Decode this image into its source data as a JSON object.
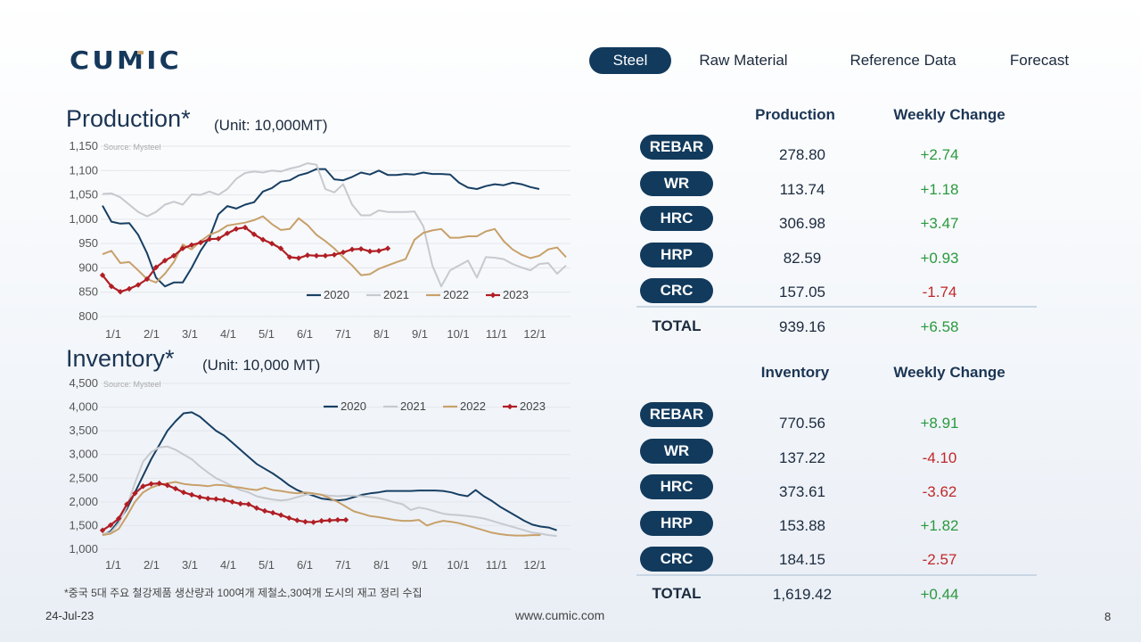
{
  "logo_text": "CUMIC",
  "nav": {
    "items": [
      "Steel",
      "Raw Material",
      "Reference Data",
      "Forecast"
    ],
    "active": "Steel"
  },
  "production_chart": {
    "title": "Production*",
    "unit": "(Unit: 10,000MT)"
  },
  "inventory_chart": {
    "title": "Inventory*",
    "unit": "(Unit: 10,000 MT)"
  },
  "chart_data": [
    {
      "type": "line",
      "title": "Production*",
      "subtitle": "(Unit: 10,000MT)",
      "source": "Source: Mysteel",
      "ylim": [
        800,
        1150
      ],
      "yticks": [
        800,
        850,
        900,
        950,
        "1,000",
        "1,050",
        "1,100",
        "1,150"
      ],
      "x_tick_labels": [
        "1/1",
        "2/1",
        "3/1",
        "4/1",
        "5/1",
        "6/1",
        "7/1",
        "8/1",
        "9/1",
        "10/1",
        "11/1",
        "12/1"
      ],
      "legend_position": "bottom-right",
      "grid": true,
      "series": [
        {
          "name": "2020",
          "color": "#173f63",
          "marker": false,
          "values": [
            1028,
            995,
            991,
            992,
            968,
            930,
            880,
            862,
            870,
            870,
            900,
            935,
            962,
            1010,
            1027,
            1022,
            1030,
            1035,
            1057,
            1064,
            1077,
            1080,
            1090,
            1095,
            1103,
            1103,
            1082,
            1080,
            1087,
            1096,
            1092,
            1100,
            1091,
            1091,
            1093,
            1092,
            1096,
            1093,
            1093,
            1092,
            1075,
            1065,
            1062,
            1068,
            1072,
            1070,
            1075,
            1072,
            1066,
            1062
          ]
        },
        {
          "name": "2021",
          "color": "#c6c9cd",
          "marker": false,
          "values": [
            1052,
            1053,
            1045,
            1030,
            1015,
            1006,
            1015,
            1030,
            1036,
            1030,
            1051,
            1050,
            1057,
            1050,
            1062,
            1083,
            1095,
            1098,
            1096,
            1100,
            1098,
            1104,
            1108,
            1115,
            1112,
            1062,
            1055,
            1072,
            1030,
            1008,
            1008,
            1018,
            1015,
            1015,
            1015,
            1016,
            985,
            905,
            862,
            895,
            905,
            915,
            880,
            922,
            921,
            918,
            908,
            901,
            895,
            908,
            910,
            888,
            905
          ]
        },
        {
          "name": "2022",
          "color": "#c8a06a",
          "marker": false,
          "values": [
            928,
            935,
            910,
            912,
            895,
            877,
            870,
            888,
            912,
            948,
            938,
            955,
            968,
            975,
            987,
            990,
            993,
            998,
            1006,
            990,
            978,
            980,
            1002,
            988,
            968,
            955,
            940,
            922,
            905,
            885,
            887,
            898,
            905,
            912,
            918,
            958,
            972,
            977,
            980,
            962,
            962,
            965,
            965,
            975,
            980,
            955,
            938,
            927,
            920,
            925,
            938,
            942,
            922
          ]
        },
        {
          "name": "2023",
          "color": "#b01e24",
          "marker": true,
          "values": [
            885,
            862,
            851,
            857,
            865,
            877,
            901,
            915,
            925,
            940,
            947,
            952,
            959,
            960,
            971,
            980,
            983,
            969,
            958,
            950,
            940,
            922,
            920,
            926,
            925,
            925,
            927,
            932,
            938,
            939,
            934,
            935,
            940
          ]
        }
      ]
    },
    {
      "type": "line",
      "title": "Inventory*",
      "subtitle": "(Unit: 10,000 MT)",
      "source": "Source: Mysteel",
      "ylim": [
        1000,
        4500
      ],
      "yticks": [
        "1,000",
        "1,500",
        "2,000",
        "2,500",
        "3,000",
        "3,500",
        "4,000",
        "4,500"
      ],
      "x_tick_labels": [
        "1/1",
        "2/1",
        "3/1",
        "4/1",
        "5/1",
        "6/1",
        "7/1",
        "8/1",
        "9/1",
        "10/1",
        "11/1",
        "12/1"
      ],
      "legend_position": "top-right",
      "grid": true,
      "series": [
        {
          "name": "2020",
          "color": "#173f63",
          "marker": false,
          "values": [
            1300,
            1380,
            1600,
            1850,
            2200,
            2550,
            2900,
            3200,
            3500,
            3700,
            3870,
            3890,
            3800,
            3650,
            3500,
            3400,
            3250,
            3100,
            2950,
            2800,
            2700,
            2600,
            2480,
            2350,
            2250,
            2180,
            2130,
            2070,
            2050,
            2030,
            2050,
            2100,
            2150,
            2180,
            2200,
            2230,
            2230,
            2230,
            2230,
            2240,
            2240,
            2240,
            2230,
            2200,
            2150,
            2120,
            2250,
            2120,
            2020,
            1900,
            1800,
            1700,
            1600,
            1520,
            1480,
            1460,
            1400
          ]
        },
        {
          "name": "2021",
          "color": "#c6c9cd",
          "marker": false,
          "values": [
            1330,
            1350,
            1550,
            1900,
            2400,
            2850,
            3050,
            3150,
            3170,
            3100,
            3000,
            2900,
            2750,
            2620,
            2500,
            2420,
            2330,
            2250,
            2200,
            2120,
            2080,
            2050,
            2030,
            2050,
            2100,
            2150,
            2170,
            2150,
            2130,
            2120,
            2130,
            2130,
            2120,
            2100,
            2080,
            2040,
            1990,
            1950,
            1830,
            1880,
            1850,
            1800,
            1750,
            1730,
            1720,
            1700,
            1680,
            1650,
            1600,
            1550,
            1500,
            1450,
            1400,
            1350,
            1330,
            1300,
            1280
          ]
        },
        {
          "name": "2022",
          "color": "#c8a06a",
          "marker": false,
          "values": [
            1300,
            1330,
            1430,
            1700,
            2000,
            2200,
            2300,
            2360,
            2390,
            2420,
            2380,
            2360,
            2350,
            2330,
            2360,
            2350,
            2320,
            2300,
            2270,
            2250,
            2300,
            2250,
            2230,
            2200,
            2180,
            2200,
            2180,
            2150,
            2080,
            2000,
            1900,
            1800,
            1750,
            1700,
            1680,
            1650,
            1620,
            1600,
            1600,
            1620,
            1500,
            1560,
            1600,
            1580,
            1550,
            1500,
            1450,
            1400,
            1350,
            1320,
            1300,
            1290,
            1290,
            1300,
            1300
          ]
        },
        {
          "name": "2023",
          "color": "#b01e24",
          "marker": true,
          "values": [
            1400,
            1510,
            1650,
            1950,
            2180,
            2330,
            2380,
            2390,
            2350,
            2280,
            2200,
            2150,
            2100,
            2070,
            2060,
            2040,
            2000,
            1960,
            1950,
            1870,
            1810,
            1770,
            1720,
            1660,
            1610,
            1580,
            1570,
            1600,
            1610,
            1620,
            1620
          ]
        }
      ]
    }
  ],
  "production_table": {
    "headers": {
      "main": "Production",
      "change": "Weekly Change"
    },
    "rows": [
      {
        "name": "REBAR",
        "value": "278.80",
        "change": "+2.74",
        "positive": true
      },
      {
        "name": "WR",
        "value": "113.74",
        "change": "+1.18",
        "positive": true
      },
      {
        "name": "HRC",
        "value": "306.98",
        "change": "+3.47",
        "positive": true
      },
      {
        "name": "HRP",
        "value": "82.59",
        "change": "+0.93",
        "positive": true
      },
      {
        "name": "CRC",
        "value": "157.05",
        "change": "-1.74",
        "positive": false
      }
    ],
    "total": {
      "label": "TOTAL",
      "value": "939.16",
      "change": "+6.58",
      "positive": true
    }
  },
  "inventory_table": {
    "headers": {
      "main": "Inventory",
      "change": "Weekly Change"
    },
    "rows": [
      {
        "name": "REBAR",
        "value": "770.56",
        "change": "+8.91",
        "positive": true
      },
      {
        "name": "WR",
        "value": "137.22",
        "change": "-4.10",
        "positive": false
      },
      {
        "name": "HRC",
        "value": "373.61",
        "change": "-3.62",
        "positive": false
      },
      {
        "name": "HRP",
        "value": "153.88",
        "change": "+1.82",
        "positive": true
      },
      {
        "name": "CRC",
        "value": "184.15",
        "change": "-2.57",
        "positive": false
      }
    ],
    "total": {
      "label": "TOTAL",
      "value": "1,619.42",
      "change": "+0.44",
      "positive": true
    }
  },
  "footnote": "*중국 5대 주요 철강제품 생산량과 100여개 제철소,30여개 도시의 재고 정리 수집",
  "footer": {
    "date": "24-Jul-23",
    "website": "www.cumic.com",
    "page": "8"
  }
}
